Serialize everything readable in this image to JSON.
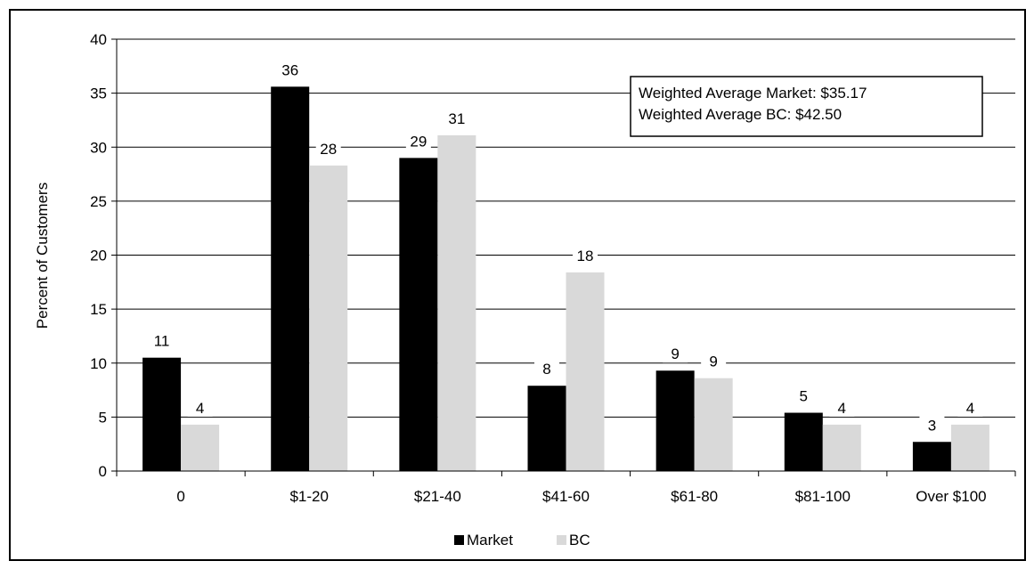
{
  "chart_data": {
    "type": "bar",
    "categories": [
      "0",
      "$1-20",
      "$21-40",
      "$41-60",
      "$61-80",
      "$81-100",
      "Over $100"
    ],
    "series": [
      {
        "name": "Market",
        "values": [
          10.5,
          35.6,
          29.0,
          7.9,
          9.3,
          5.4,
          2.7
        ],
        "labels": [
          "11",
          "36",
          "29",
          "8",
          "9",
          "5",
          "3"
        ],
        "color": "#000000"
      },
      {
        "name": "BC",
        "values": [
          4.3,
          28.3,
          31.1,
          18.4,
          8.6,
          4.3,
          4.3
        ],
        "labels": [
          "4",
          "28",
          "31",
          "18",
          "9",
          "4",
          "4"
        ],
        "color": "#d9d9d9"
      }
    ],
    "ylabel": "Percent of Customers",
    "xlabel": "",
    "ylim": [
      0,
      40
    ],
    "yticks": [
      "0",
      "5",
      "10",
      "15",
      "20",
      "25",
      "30",
      "35",
      "40"
    ],
    "grid": true,
    "legend_position": "bottom",
    "annotation": {
      "line1": "Weighted Average Market: $35.17",
      "line2": "Weighted Average BC: $42.50"
    }
  }
}
